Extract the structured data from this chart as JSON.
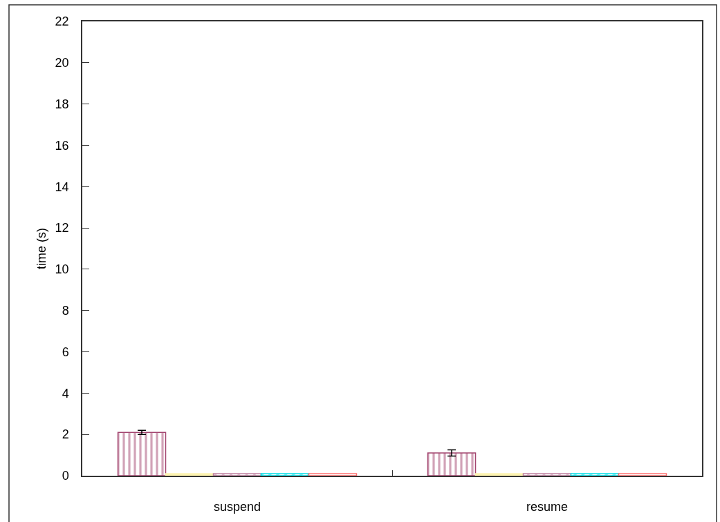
{
  "chart_data": {
    "type": "bar",
    "ylabel": "time (s)",
    "categories": [
      "suspend",
      "resume"
    ],
    "series": [
      {
        "color": "#a3456f",
        "values": [
          2.1,
          1.1
        ],
        "errors": [
          0.1,
          0.15
        ]
      },
      {
        "color": "#fdf3b0",
        "values": [
          0.1,
          0.1
        ]
      },
      {
        "color": "#c07fa0",
        "values": [
          0.1,
          0.1
        ]
      },
      {
        "color": "#00e0e8",
        "values": [
          0.1,
          0.1
        ]
      },
      {
        "color": "#ff6f6f",
        "values": [
          0.1,
          0.1
        ]
      }
    ],
    "ylim": [
      0,
      22
    ],
    "yticks": [
      0,
      2,
      4,
      6,
      8,
      10,
      12,
      14,
      16,
      18,
      20,
      22
    ]
  }
}
